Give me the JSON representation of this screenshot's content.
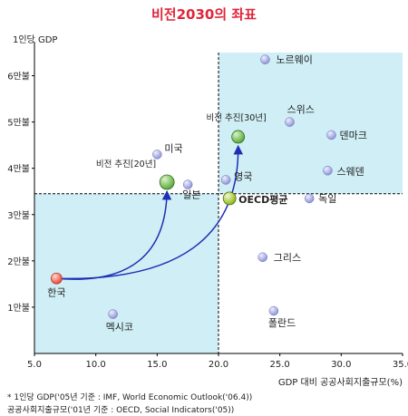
{
  "chart_data": {
    "type": "scatter",
    "title": "비전2030의 좌표",
    "ylabel": "1인당 GDP",
    "xlabel": "GDP 대비 공공사회지출규모(%)",
    "xlim": [
      5,
      35
    ],
    "ylim": [
      0,
      6.5
    ],
    "x_ticks": [
      "5.0",
      "10.0",
      "15.0",
      "20.0",
      "25.0",
      "30.0",
      "35.0"
    ],
    "y_ticks": [
      "1만불",
      "2만불",
      "3만불",
      "4만불",
      "5만불",
      "6만불"
    ],
    "grid": false,
    "reference_lines": {
      "x": 20,
      "y": 3.45
    },
    "shaded_quadrants": [
      "lower-left",
      "upper-right"
    ],
    "colors": {
      "shade": "#cfeef5",
      "point": "#8f93d6",
      "korea": "#e8473c",
      "vision": "#5aa83c",
      "oecd": "#8fb81a",
      "arrow": "#1d2fb4",
      "title": "#e0263a"
    },
    "points": [
      {
        "label": "노르웨이",
        "x": 23.8,
        "y": 6.35
      },
      {
        "label": "스위스",
        "x": 25.8,
        "y": 5.0
      },
      {
        "label": "덴마크",
        "x": 29.2,
        "y": 4.72
      },
      {
        "label": "미국",
        "x": 15.0,
        "y": 4.3
      },
      {
        "label": "스웨덴",
        "x": 28.9,
        "y": 3.95
      },
      {
        "label": "영국",
        "x": 20.6,
        "y": 3.75
      },
      {
        "label": "일본",
        "x": 17.5,
        "y": 3.65
      },
      {
        "label": "독일",
        "x": 27.4,
        "y": 3.35
      },
      {
        "label": "그리스",
        "x": 23.6,
        "y": 2.08
      },
      {
        "label": "멕시코",
        "x": 11.4,
        "y": 0.85
      },
      {
        "label": "폴란드",
        "x": 24.5,
        "y": 0.92
      }
    ],
    "highlights": [
      {
        "label": "한국",
        "x": 6.8,
        "y": 1.62,
        "kind": "korea"
      },
      {
        "label": "비전 추진[20년]",
        "x": 15.8,
        "y": 3.7,
        "kind": "vision"
      },
      {
        "label": "비전 추진[30년]",
        "x": 21.6,
        "y": 4.68,
        "kind": "vision"
      },
      {
        "label": "OECD평균",
        "x": 20.9,
        "y": 3.35,
        "kind": "oecd"
      }
    ],
    "notes": [
      "* 1인당 GDP('05년 기준 : IMF, World Economic Outlook('06.4))",
      "공공사회지출규모('01년 기준 : OECD, Social Indicators('05))"
    ]
  }
}
